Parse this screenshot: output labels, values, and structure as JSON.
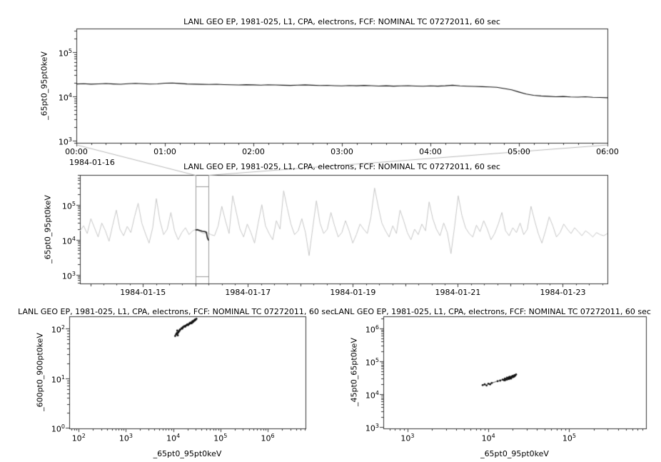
{
  "chart_data": [
    {
      "type": "line",
      "title": "LANL GEO EP, 1981-025, L1, CPA, electrons, FCF: NOMINAL TC 07272011, 60 sec",
      "ylabel": "_65pt0_95pt0keV",
      "x_axis": {
        "kind": "time",
        "date_label": "1984-01-16",
        "range_hours": [
          0,
          6
        ],
        "tick_hours": [
          0,
          1,
          2,
          3,
          4,
          5,
          6
        ],
        "tick_labels": [
          "00:00",
          "01:00",
          "02:00",
          "03:00",
          "04:00",
          "05:00",
          "06:00"
        ],
        "minor_step_hours": 0.166667
      },
      "y_axis": {
        "scale": "log",
        "exp_range": [
          2.95,
          5.53
        ],
        "major_exponents": [
          3,
          4,
          5
        ]
      },
      "series": [
        {
          "name": "_65pt0_95pt0keV",
          "color": "#111111",
          "x_start_hours": 0,
          "x_step_hours": 0.083333,
          "values": [
            19000,
            19200,
            18800,
            19100,
            19400,
            19000,
            18700,
            19300,
            19600,
            19200,
            18900,
            19100,
            19800,
            20000,
            19500,
            19000,
            18800,
            18600,
            18500,
            18700,
            18400,
            18200,
            18000,
            18300,
            18100,
            17900,
            18200,
            18000,
            17800,
            17600,
            17900,
            18100,
            17800,
            17500,
            17700,
            17400,
            17200,
            17500,
            17300,
            17600,
            17400,
            17100,
            17300,
            17000,
            17200,
            17400,
            17100,
            16900,
            17200,
            17000,
            17300,
            17800,
            17200,
            16900,
            16700,
            16500,
            16300,
            16000,
            15000,
            14000,
            12500,
            11200,
            10500,
            10200,
            10000,
            9800,
            9900,
            9700,
            9600,
            9800,
            9500,
            9400,
            9300
          ]
        }
      ]
    },
    {
      "type": "line",
      "title": "LANL GEO EP, 1981-025, L1, CPA, electrons, FCF: NOMINAL TC 07272011, 60 sec",
      "ylabel": "_65pt0_95pt0keV",
      "x_axis": {
        "kind": "time",
        "range_days": [
          13.8,
          23.85
        ],
        "tick_days": [
          15,
          17,
          19,
          21,
          23
        ],
        "tick_labels": [
          "1984-01-15",
          "1984-01-17",
          "1984-01-19",
          "1984-01-21",
          "1984-01-23"
        ]
      },
      "y_axis": {
        "scale": "log",
        "exp_range": [
          2.75,
          5.85
        ],
        "major_exponents": [
          3,
          4,
          5
        ]
      },
      "series": [
        {
          "name": "overview",
          "color": "#c6c6c6",
          "x_start_days": 13.8,
          "x_step_days": 0.0693,
          "values": [
            18000,
            25000,
            15000,
            40000,
            22000,
            12000,
            30000,
            18000,
            9000,
            26000,
            70000,
            20000,
            13000,
            24000,
            16000,
            45000,
            110000,
            30000,
            15000,
            8000,
            22000,
            150000,
            35000,
            14000,
            20000,
            60000,
            18000,
            10000,
            16000,
            22000,
            14000,
            18000,
            20000,
            17000,
            15000,
            16000,
            14000,
            13000,
            25000,
            90000,
            35000,
            15000,
            180000,
            60000,
            20000,
            12000,
            28000,
            16000,
            8000,
            30000,
            100000,
            25000,
            15000,
            10000,
            35000,
            20000,
            250000,
            80000,
            28000,
            14000,
            18000,
            40000,
            16000,
            3500,
            22000,
            130000,
            30000,
            15000,
            20000,
            60000,
            25000,
            12000,
            16000,
            35000,
            18000,
            8000,
            14000,
            28000,
            20000,
            15000,
            45000,
            300000,
            90000,
            30000,
            18000,
            12000,
            25000,
            15000,
            70000,
            35000,
            16000,
            10000,
            20000,
            14000,
            28000,
            18000,
            120000,
            40000,
            20000,
            13000,
            30000,
            16000,
            4000,
            24000,
            180000,
            50000,
            22000,
            15000,
            12000,
            26000,
            17000,
            35000,
            20000,
            10000,
            15000,
            28000,
            60000,
            18000,
            13000,
            22000,
            16000,
            30000,
            14000,
            20000,
            90000,
            35000,
            15000,
            8000,
            18000,
            45000,
            25000,
            12000,
            16000,
            28000,
            20000,
            15000,
            22000,
            17000,
            13000,
            18000,
            15000,
            12000,
            16000,
            14000,
            13000,
            15000
          ]
        },
        {
          "name": "zoom-highlight",
          "color": "#111111",
          "x_start_days": 16.0,
          "x_step_days": 0.0208333,
          "values": [
            19000,
            19100,
            19400,
            18700,
            18300,
            18000,
            17600,
            17300,
            17100,
            16900,
            16300,
            11200,
            9500
          ]
        }
      ],
      "selection_box": {
        "x_days": [
          16.0,
          16.25
        ],
        "y_exp": [
          2.95,
          5.53
        ],
        "color": "#999999"
      },
      "connector_color": "#b8b8b8"
    },
    {
      "type": "scatter",
      "title": "LANL GEO EP, 1981-025, L1, CPA, electrons, FCF: NOMINAL TC 07272011, 60 sec",
      "ylabel": "_600pt0_900pt0keV",
      "xlabel": "_65pt0_95pt0keV",
      "x_axis": {
        "scale": "log",
        "exp_range": [
          1.8,
          6.8
        ],
        "major_exponents": [
          2,
          3,
          4,
          5,
          6
        ]
      },
      "y_axis": {
        "scale": "log",
        "exp_range": [
          -0.01,
          2.24
        ],
        "major_exponents": [
          0,
          1,
          2
        ]
      },
      "color": "#111111",
      "points": [
        [
          11000,
          70
        ],
        [
          11500,
          75
        ],
        [
          12000,
          80
        ],
        [
          12500,
          72
        ],
        [
          13000,
          85
        ],
        [
          12200,
          90
        ],
        [
          11800,
          78
        ],
        [
          13500,
          88
        ],
        [
          14000,
          95
        ],
        [
          12800,
          82
        ],
        [
          15000,
          100
        ],
        [
          16000,
          105
        ],
        [
          17000,
          110
        ],
        [
          18000,
          108
        ],
        [
          19000,
          115
        ],
        [
          20000,
          120
        ],
        [
          21000,
          118
        ],
        [
          22000,
          125
        ],
        [
          23000,
          130
        ],
        [
          24000,
          128
        ],
        [
          25000,
          135
        ],
        [
          26000,
          140
        ],
        [
          27000,
          138
        ],
        [
          28000,
          145
        ],
        [
          29000,
          150
        ],
        [
          30000,
          148
        ],
        [
          31000,
          155
        ],
        [
          26000,
          132
        ],
        [
          22000,
          122
        ],
        [
          18000,
          112
        ],
        [
          15500,
          98
        ],
        [
          13800,
          92
        ],
        [
          20500,
          116
        ],
        [
          24500,
          126
        ],
        [
          28500,
          142
        ]
      ]
    },
    {
      "type": "scatter",
      "title": "LANL GEO EP, 1981-025, L1, CPA, electrons, FCF: NOMINAL TC 07272011, 60 sec",
      "ylabel": "_45pt0_65pt0keV",
      "xlabel": "_65pt0_95pt0keV",
      "x_axis": {
        "scale": "log",
        "exp_range": [
          2.7,
          5.95
        ],
        "major_exponents": [
          3,
          4,
          5
        ]
      },
      "y_axis": {
        "scale": "log",
        "exp_range": [
          2.96,
          6.37
        ],
        "major_exponents": [
          3,
          4,
          5,
          6
        ]
      },
      "color": "#111111",
      "points": [
        [
          8500,
          19000
        ],
        [
          9000,
          20000
        ],
        [
          9500,
          18500
        ],
        [
          10000,
          21000
        ],
        [
          10500,
          20000
        ],
        [
          11000,
          22000
        ],
        [
          13000,
          25000
        ],
        [
          14000,
          26000
        ],
        [
          15000,
          28000
        ],
        [
          15500,
          27000
        ],
        [
          16000,
          30000
        ],
        [
          16500,
          29000
        ],
        [
          17000,
          32000
        ],
        [
          17500,
          31000
        ],
        [
          18000,
          33000
        ],
        [
          18500,
          34000
        ],
        [
          19000,
          32000
        ],
        [
          19500,
          35000
        ],
        [
          20000,
          36000
        ],
        [
          20500,
          34000
        ],
        [
          21000,
          38000
        ],
        [
          21500,
          37000
        ],
        [
          22000,
          40000
        ],
        [
          19000,
          30000
        ],
        [
          18000,
          29000
        ],
        [
          17000,
          28000
        ],
        [
          16000,
          26500
        ],
        [
          20000,
          33000
        ],
        [
          21000,
          35000
        ],
        [
          18500,
          31500
        ]
      ]
    }
  ]
}
